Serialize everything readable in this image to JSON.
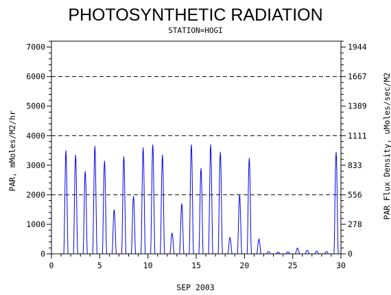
{
  "chart_data": {
    "type": "line",
    "title": "PHOTOSYNTHETIC RADIATION",
    "subtitle": "STATION=HOGI",
    "xlabel": "SEP 2003",
    "ylabel": "PAR, mMoles/M2/hr",
    "y2label": "PAR Flux Density, uMoles/sec/M2",
    "xlim": [
      0,
      30
    ],
    "ylim": [
      0,
      7200
    ],
    "x_ticks": [
      "0",
      "5",
      "10",
      "15",
      "20",
      "25",
      "30"
    ],
    "y_ticks": [
      "0",
      "1000",
      "2000",
      "3000",
      "4000",
      "5000",
      "6000",
      "7000"
    ],
    "y2_ticks": [
      "0",
      "278",
      "556",
      "833",
      "1111",
      "1389",
      "1667",
      "1944"
    ],
    "reference_lines": [
      2000,
      4000,
      6000
    ],
    "line_color": "#0000ee",
    "series": [
      {
        "daily_peaks": [
          {
            "x": 1.5,
            "y": 3500
          },
          {
            "x": 2.5,
            "y": 3350
          },
          {
            "x": 3.5,
            "y": 2800
          },
          {
            "x": 4.5,
            "y": 3650
          },
          {
            "x": 5.5,
            "y": 3150
          },
          {
            "x": 6.5,
            "y": 1500
          },
          {
            "x": 7.5,
            "y": 3300
          },
          {
            "x": 8.5,
            "y": 1950
          },
          {
            "x": 9.5,
            "y": 3600
          },
          {
            "x": 10.5,
            "y": 3700
          },
          {
            "x": 11.5,
            "y": 3350
          },
          {
            "x": 12.5,
            "y": 700
          },
          {
            "x": 13.5,
            "y": 1700
          },
          {
            "x": 14.5,
            "y": 3700
          },
          {
            "x": 15.5,
            "y": 2900
          },
          {
            "x": 16.5,
            "y": 3700
          },
          {
            "x": 17.5,
            "y": 3450
          },
          {
            "x": 18.5,
            "y": 550
          },
          {
            "x": 19.5,
            "y": 2000
          },
          {
            "x": 20.5,
            "y": 3250
          },
          {
            "x": 21.5,
            "y": 500
          },
          {
            "x": 22.5,
            "y": 80
          },
          {
            "x": 23.5,
            "y": 60
          },
          {
            "x": 24.5,
            "y": 70
          },
          {
            "x": 25.5,
            "y": 200
          },
          {
            "x": 26.5,
            "y": 120
          },
          {
            "x": 27.5,
            "y": 90
          },
          {
            "x": 28.5,
            "y": 80
          },
          {
            "x": 29.5,
            "y": 3450
          }
        ]
      }
    ]
  }
}
